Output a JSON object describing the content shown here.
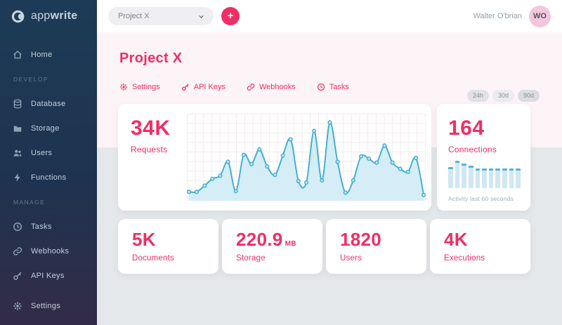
{
  "brand": {
    "accent": "#f02e65",
    "logo_light": "app",
    "logo_bold": "write"
  },
  "topbar": {
    "project_selector": "Project X",
    "add_button": "+",
    "user_name": "Walter O'brian",
    "user_initials": "WO"
  },
  "sidebar": {
    "home": {
      "label": "Home",
      "icon": "home-icon"
    },
    "sections": [
      {
        "title": "DEVELOP",
        "items": [
          {
            "label": "Database",
            "icon": "database-icon"
          },
          {
            "label": "Storage",
            "icon": "folder-icon"
          },
          {
            "label": "Users",
            "icon": "users-icon"
          },
          {
            "label": "Functions",
            "icon": "lightning-icon"
          }
        ]
      },
      {
        "title": "MANAGE",
        "items": [
          {
            "label": "Tasks",
            "icon": "clock-icon"
          },
          {
            "label": "Webhooks",
            "icon": "link-icon"
          },
          {
            "label": "API Keys",
            "icon": "key-icon"
          }
        ]
      }
    ],
    "footer": {
      "label": "Settings",
      "icon": "gear-icon"
    }
  },
  "page": {
    "title": "Project X",
    "tabs": [
      {
        "label": "Settings",
        "icon": "gear-icon"
      },
      {
        "label": "API Keys",
        "icon": "key-icon"
      },
      {
        "label": "Webhooks",
        "icon": "link-icon"
      },
      {
        "label": "Tasks",
        "icon": "clock-icon"
      }
    ],
    "ranges": [
      "24h",
      "30d",
      "90d"
    ]
  },
  "chart_data": [
    {
      "type": "area",
      "title": "Requests",
      "headline_value": "34K",
      "x": "evenly spaced samples, unlabeled axis",
      "values": [
        6,
        6,
        14,
        23,
        27,
        45,
        7,
        54,
        42,
        61,
        39,
        28,
        53,
        74,
        20,
        18,
        85,
        21,
        96,
        45,
        5,
        21,
        52,
        49,
        44,
        66,
        44,
        36,
        32,
        50,
        2
      ],
      "ylim": [
        0,
        100
      ],
      "grid": true,
      "line_color": "#41aed0",
      "fill_color": "#d4edf7",
      "marker_fill": "#bce6f4"
    },
    {
      "type": "bar",
      "title": "Connections",
      "headline_value": "164",
      "caption": "Activity last 60 seconds",
      "values": [
        60,
        78,
        70,
        63,
        55,
        55,
        55,
        55,
        55,
        55,
        55
      ],
      "ylim": [
        0,
        100
      ],
      "bar_color": "#cfe8f3",
      "cap_color": "#55b4d6"
    }
  ],
  "stats": [
    {
      "value": "5K",
      "unit": "",
      "label": "Documents"
    },
    {
      "value": "220.9",
      "unit": "MB",
      "label": "Storage"
    },
    {
      "value": "1820",
      "unit": "",
      "label": "Users"
    },
    {
      "value": "4K",
      "unit": "",
      "label": "Executions"
    }
  ]
}
